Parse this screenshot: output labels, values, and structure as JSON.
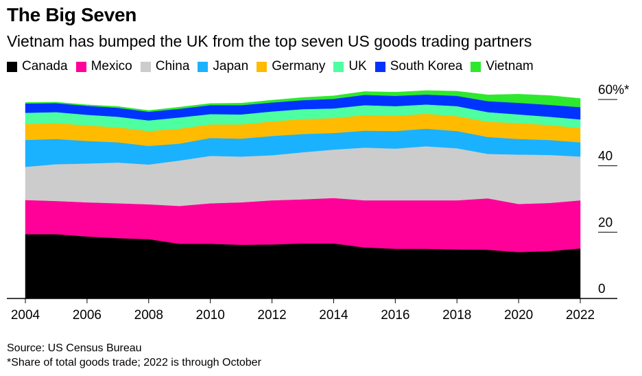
{
  "title": "The Big Seven",
  "subtitle": "Vietnam has bumped the UK from the top seven US goods trading partners",
  "source": "Source: US Census Bureau",
  "note": "*Share of total goods trade; 2022 is through October",
  "chart_data": {
    "type": "area",
    "stacked": true,
    "x": [
      2004,
      2005,
      2006,
      2007,
      2008,
      2009,
      2010,
      2011,
      2012,
      2013,
      2014,
      2015,
      2016,
      2017,
      2018,
      2019,
      2020,
      2021,
      2022
    ],
    "x_ticks": [
      2004,
      2006,
      2008,
      2010,
      2012,
      2014,
      2016,
      2018,
      2020,
      2022
    ],
    "x_tick_labels": [
      "2004",
      "2006",
      "2008",
      "2010",
      "2012",
      "2014",
      "2016",
      "2018",
      "2020",
      "2022"
    ],
    "ylim": [
      0,
      60
    ],
    "y_ticks": [
      0,
      20,
      40,
      60
    ],
    "y_tick_labels": [
      "0",
      "20",
      "40",
      "60%*"
    ],
    "y_axis_side": "right",
    "legend_position": "top",
    "series": [
      {
        "name": "Canada",
        "color": "#000000",
        "values": [
          19.4,
          19.4,
          18.7,
          18.2,
          17.9,
          16.5,
          16.5,
          16.2,
          16.3,
          16.6,
          16.6,
          15.4,
          15.0,
          15.0,
          14.8,
          14.7,
          14.0,
          14.3,
          15.1
        ]
      },
      {
        "name": "Mexico",
        "color": "#ff0099",
        "values": [
          10.3,
          10.0,
          10.3,
          10.5,
          10.5,
          11.4,
          12.2,
          12.8,
          13.3,
          13.3,
          13.7,
          14.2,
          14.6,
          14.6,
          14.8,
          15.5,
          14.5,
          14.5,
          14.5
        ]
      },
      {
        "name": "China",
        "color": "#cccccc",
        "values": [
          10.0,
          11.1,
          11.7,
          12.3,
          12.0,
          13.7,
          14.3,
          13.8,
          13.6,
          14.2,
          14.6,
          15.9,
          15.6,
          16.3,
          15.7,
          13.4,
          14.9,
          14.5,
          13.2
        ]
      },
      {
        "name": "Japan",
        "color": "#1ab2ff",
        "values": [
          8.1,
          7.6,
          6.8,
          6.1,
          5.6,
          5.1,
          5.4,
          5.4,
          5.8,
          5.5,
          5.0,
          5.1,
          5.3,
          5.3,
          5.2,
          5.1,
          4.7,
          4.5,
          4.3
        ]
      },
      {
        "name": "Germany",
        "color": "#ffbb00",
        "values": [
          4.8,
          4.8,
          4.7,
          4.5,
          4.5,
          4.5,
          4.1,
          4.3,
          4.4,
          4.5,
          4.5,
          4.7,
          4.6,
          4.5,
          4.5,
          4.6,
          4.8,
          4.5,
          4.3
        ]
      },
      {
        "name": "UK",
        "color": "#4dffa0",
        "values": [
          3.4,
          3.3,
          3.2,
          3.2,
          3.2,
          3.4,
          3.1,
          3.0,
          3.0,
          3.0,
          2.9,
          3.0,
          2.9,
          2.8,
          3.0,
          2.9,
          2.6,
          2.5,
          2.6
        ]
      },
      {
        "name": "South Korea",
        "color": "#0033ff",
        "values": [
          2.8,
          2.7,
          2.7,
          2.7,
          2.6,
          2.6,
          2.7,
          2.8,
          2.7,
          2.7,
          2.9,
          3.1,
          3.1,
          3.0,
          3.1,
          3.3,
          3.5,
          3.6,
          3.7
        ]
      },
      {
        "name": "Vietnam",
        "color": "#2ee82e",
        "values": [
          0.3,
          0.3,
          0.3,
          0.4,
          0.4,
          0.5,
          0.5,
          0.6,
          0.7,
          0.8,
          0.9,
          1.0,
          1.1,
          1.2,
          1.4,
          1.9,
          2.6,
          2.8,
          2.6
        ]
      }
    ]
  }
}
